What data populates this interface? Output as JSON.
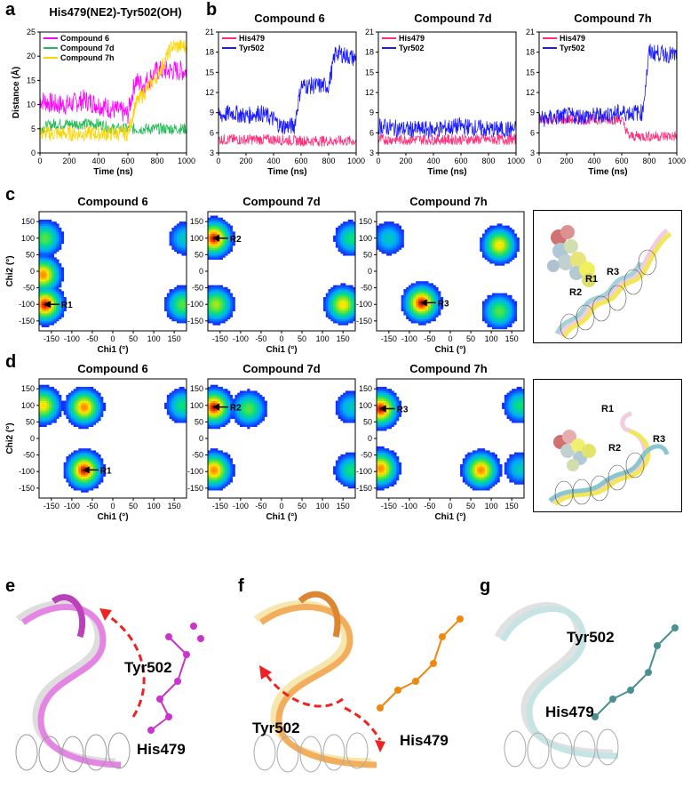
{
  "panel_letters": {
    "a": "a",
    "b": "b",
    "c": "c",
    "d": "d",
    "e": "e",
    "f": "f",
    "g": "g"
  },
  "panel_a": {
    "title": "His479(NE2)-Tyr502(OH)",
    "ylabel": "Distance (Å)",
    "xlabel": "Time (ns)",
    "xticks": [
      "0",
      "200",
      "400",
      "600",
      "800",
      "1000"
    ],
    "yticks": [
      "0",
      "5",
      "10",
      "15",
      "20",
      "25"
    ],
    "legend": [
      "Compound 6",
      "Compound 7d",
      "Compound 7h"
    ]
  },
  "panel_b": {
    "xlabel": "Time (ns)",
    "xticks": [
      "0",
      "200",
      "400",
      "600",
      "800",
      "1000"
    ],
    "yticks": [
      "3",
      "6",
      "9",
      "12",
      "15",
      "18",
      "21"
    ],
    "legend": [
      "His479",
      "Tyr502"
    ],
    "plots": [
      {
        "title": "Compound 6"
      },
      {
        "title": "Compound 7d"
      },
      {
        "title": "Compound  7h"
      }
    ]
  },
  "panel_c": {
    "ylabel": "Chi2 (°)",
    "xlabel": "Chi1 (°)",
    "xticks": [
      "-150",
      "-100",
      "-50",
      "0",
      "50",
      "100",
      "150"
    ],
    "yticks": [
      "150",
      "100",
      "50",
      "0",
      "-50",
      "-100",
      "-150"
    ],
    "plots": [
      {
        "title": "Compound 6",
        "marker": "R1"
      },
      {
        "title": "Compound 7d",
        "marker": "R2"
      },
      {
        "title": "Compound 7h",
        "marker": "R3"
      }
    ],
    "inset_labels": [
      "R1",
      "R3",
      "R2"
    ]
  },
  "panel_d": {
    "ylabel": "Chi2 (°)",
    "xlabel": "Chi1 (°)",
    "xticks": [
      "-150",
      "-100",
      "-50",
      "0",
      "50",
      "100",
      "150"
    ],
    "yticks": [
      "150",
      "100",
      "50",
      "0",
      "-50",
      "-100",
      "-150"
    ],
    "plots": [
      {
        "title": "Compound 6",
        "marker": "R1"
      },
      {
        "title": "Compound 7d",
        "marker": "R2"
      },
      {
        "title": "Compound 7h",
        "marker": "R3"
      }
    ],
    "inset_labels": [
      "R1",
      "R3",
      "R2"
    ]
  },
  "panel_e": {
    "labels": [
      "Tyr502",
      "His479"
    ]
  },
  "panel_f": {
    "labels": [
      "Tyr502",
      "His479"
    ]
  },
  "panel_g": {
    "labels": [
      "Tyr502",
      "His479"
    ]
  },
  "colors": {
    "compound6": "#ff00ff",
    "compound7d": "#22bb55",
    "compound7h": "#ffd400",
    "his479": "#ff2d7a",
    "tyr502": "#1a1aff",
    "heat_high": "#cc0000",
    "heat_mid": "#ffee00",
    "heat_low": "#0033ff"
  },
  "chart_data": [
    {
      "type": "line",
      "title": "His479(NE2)-Tyr502(OH)",
      "xlabel": "Time (ns)",
      "ylabel": "Distance (Å)",
      "xlim": [
        0,
        1000
      ],
      "ylim": [
        0,
        25
      ],
      "legend_position": "top-left",
      "series": [
        {
          "name": "Compound 6",
          "x": [
            0,
            100,
            200,
            300,
            400,
            500,
            600,
            650,
            700,
            800,
            900,
            1000
          ],
          "values": [
            11,
            10,
            10,
            11,
            10,
            9,
            8,
            15,
            14,
            17,
            17,
            17
          ]
        },
        {
          "name": "Compound 7d",
          "x": [
            0,
            100,
            200,
            300,
            400,
            500,
            600,
            650,
            700,
            800,
            900,
            1000
          ],
          "values": [
            5,
            6,
            6,
            6,
            6,
            5,
            5,
            5,
            5,
            5,
            5,
            5
          ]
        },
        {
          "name": "Compound 7h",
          "x": [
            0,
            100,
            200,
            300,
            400,
            500,
            600,
            650,
            700,
            800,
            900,
            1000
          ],
          "values": [
            4,
            4,
            4,
            4,
            4,
            4,
            4,
            10,
            12,
            16,
            22,
            22
          ]
        }
      ]
    },
    {
      "type": "line",
      "title": "Compound 6",
      "xlabel": "Time (ns)",
      "xlim": [
        0,
        1000
      ],
      "ylim": [
        3,
        21
      ],
      "series": [
        {
          "name": "His479",
          "x": [
            0,
            200,
            400,
            600,
            800,
            1000
          ],
          "values": [
            5,
            5,
            5,
            4.8,
            4.8,
            4.8
          ]
        },
        {
          "name": "Tyr502",
          "x": [
            0,
            100,
            200,
            300,
            400,
            450,
            550,
            600,
            650,
            800,
            850,
            1000
          ],
          "values": [
            8.5,
            9,
            8.5,
            9,
            8,
            7,
            7,
            13,
            13,
            13,
            18,
            17
          ]
        }
      ]
    },
    {
      "type": "line",
      "title": "Compound 7d",
      "xlabel": "Time (ns)",
      "xlim": [
        0,
        1000
      ],
      "ylim": [
        3,
        21
      ],
      "series": [
        {
          "name": "His479",
          "x": [
            0,
            200,
            400,
            600,
            800,
            1000
          ],
          "values": [
            5,
            5,
            5,
            5,
            5,
            5
          ]
        },
        {
          "name": "Tyr502",
          "x": [
            0,
            200,
            400,
            600,
            800,
            1000
          ],
          "values": [
            7,
            6.5,
            6.5,
            7,
            6.5,
            6.5
          ]
        }
      ]
    },
    {
      "type": "line",
      "title": "Compound  7h",
      "xlabel": "Time (ns)",
      "xlim": [
        0,
        1000
      ],
      "ylim": [
        3,
        21
      ],
      "series": [
        {
          "name": "His479",
          "x": [
            0,
            200,
            400,
            600,
            650,
            800,
            1000
          ],
          "values": [
            8,
            8,
            8,
            8,
            5.5,
            5.5,
            5.5
          ]
        },
        {
          "name": "Tyr502",
          "x": [
            0,
            200,
            400,
            600,
            750,
            800,
            1000
          ],
          "values": [
            8,
            8.5,
            8.5,
            9,
            9,
            18,
            17.5
          ]
        }
      ]
    },
    {
      "type": "heatmap",
      "title": "Compound 6",
      "xlabel": "Chi1 (°)",
      "ylabel": "Chi2 (°)",
      "xlim": [
        -180,
        180
      ],
      "ylim": [
        -180,
        180
      ],
      "peaks": [
        [
          -165,
          -100,
          1.0
        ],
        [
          -170,
          -10,
          0.9
        ],
        [
          -165,
          100,
          0.6
        ],
        [
          170,
          -100,
          0.6
        ],
        [
          175,
          100,
          0.4
        ]
      ]
    },
    {
      "type": "heatmap",
      "title": "Compound 7d",
      "xlabel": "Chi1 (°)",
      "ylabel": "Chi2 (°)",
      "xlim": [
        -180,
        180
      ],
      "ylim": [
        -180,
        180
      ],
      "peaks": [
        [
          -165,
          100,
          1.0
        ],
        [
          -160,
          -100,
          0.7
        ],
        [
          150,
          -100,
          0.8
        ],
        [
          170,
          100,
          0.5
        ]
      ]
    },
    {
      "type": "heatmap",
      "title": "Compound 7h",
      "xlabel": "Chi1 (°)",
      "ylabel": "Chi2 (°)",
      "xlim": [
        -180,
        180
      ],
      "ylim": [
        -180,
        180
      ],
      "peaks": [
        [
          -70,
          -95,
          1.0
        ],
        [
          120,
          80,
          0.8
        ],
        [
          120,
          -120,
          0.6
        ],
        [
          -150,
          100,
          0.4
        ]
      ]
    },
    {
      "type": "heatmap",
      "title": "Compound 6",
      "xlabel": "Chi1 (°)",
      "ylabel": "Chi2 (°)",
      "xlim": [
        -180,
        180
      ],
      "ylim": [
        -180,
        180
      ],
      "peaks": [
        [
          -70,
          -95,
          1.0
        ],
        [
          -70,
          95,
          0.9
        ],
        [
          -170,
          100,
          0.8
        ],
        [
          170,
          100,
          0.5
        ]
      ]
    },
    {
      "type": "heatmap",
      "title": "Compound 7d",
      "xlabel": "Chi1 (°)",
      "ylabel": "Chi2 (°)",
      "xlim": [
        -180,
        180
      ],
      "ylim": [
        -180,
        180
      ],
      "peaks": [
        [
          -165,
          95,
          1.0
        ],
        [
          -165,
          -95,
          0.9
        ],
        [
          -80,
          90,
          0.6
        ],
        [
          170,
          -95,
          0.5
        ],
        [
          170,
          95,
          0.4
        ]
      ]
    },
    {
      "type": "heatmap",
      "title": "Compound 7h",
      "xlabel": "Chi1 (°)",
      "ylabel": "Chi2 (°)",
      "xlim": [
        -180,
        180
      ],
      "ylim": [
        -180,
        180
      ],
      "peaks": [
        [
          -170,
          90,
          1.0
        ],
        [
          -170,
          -90,
          0.9
        ],
        [
          75,
          -95,
          0.9
        ],
        [
          170,
          100,
          0.5
        ],
        [
          170,
          -90,
          0.4
        ]
      ]
    }
  ]
}
